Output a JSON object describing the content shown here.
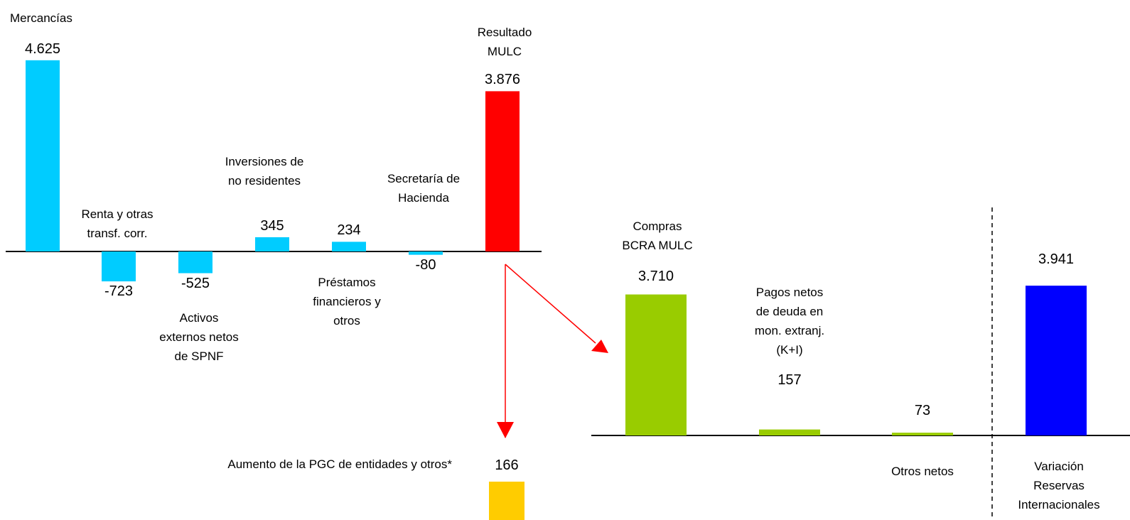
{
  "chart_data": [
    {
      "type": "bar",
      "categories": [
        "Mercancías",
        "Renta y otras\ntransf. corr.",
        "Activos\nexternos netos\nde SPNF",
        "Inversiones de\nno residentes",
        "Préstamos\nfinancieros y\notros",
        "Secretaría de\nHacienda",
        "Resultado\nMULC"
      ],
      "values": [
        4625,
        -723,
        -525,
        345,
        234,
        -80,
        3876
      ],
      "value_labels": [
        "4.625",
        "-723",
        "-525",
        "345",
        "234",
        "-80",
        "3.876"
      ],
      "colors": [
        "#00ccff",
        "#00ccff",
        "#00ccff",
        "#00ccff",
        "#00ccff",
        "#00ccff",
        "#ff0000"
      ]
    },
    {
      "type": "bar",
      "categories": [
        "Compras\nBCRA MULC",
        "Pagos netos\nde deuda en\nmon. extranj.\n(K+I)",
        "Otros netos",
        "Variación\nReservas\nInternacionales"
      ],
      "values": [
        3710,
        157,
        73,
        3941
      ],
      "value_labels": [
        "3.710",
        "157",
        "73",
        "3.941"
      ],
      "colors": [
        "#99cc00",
        "#99cc00",
        "#99cc00",
        "#0000ff"
      ]
    },
    {
      "type": "bar",
      "categories": [
        "Aumento de la PGC de entidades y otros*"
      ],
      "values": [
        166
      ],
      "colors": [
        "#ffcc00"
      ]
    }
  ]
}
